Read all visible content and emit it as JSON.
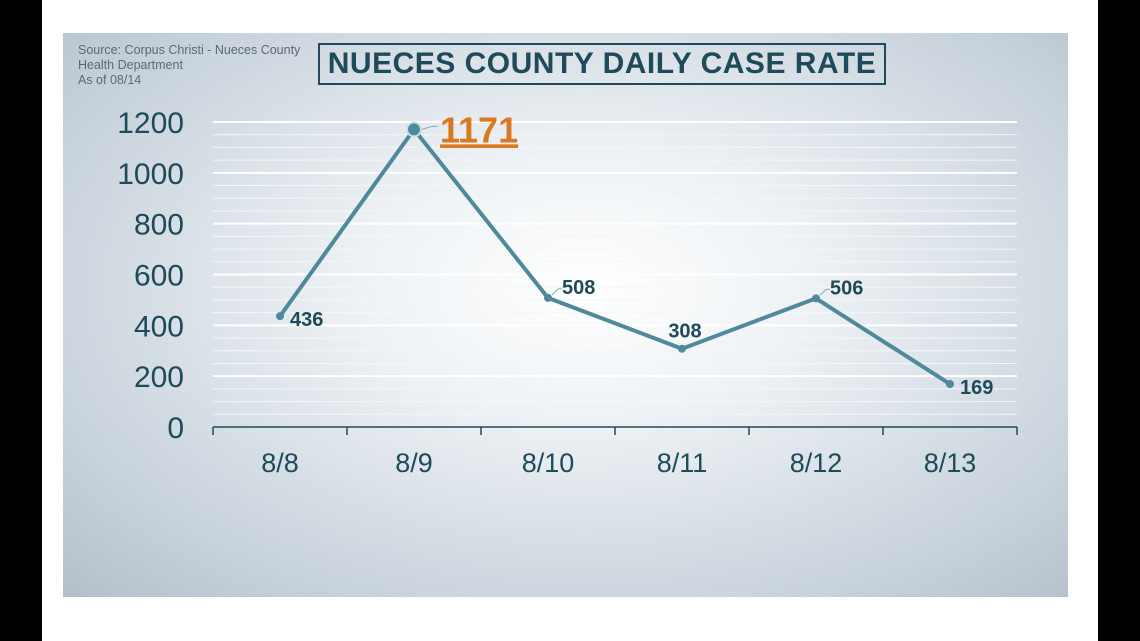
{
  "source": {
    "lines": [
      "Source: Corpus Christi - Nueces County",
      "Health Department",
      "As of 08/14"
    ]
  },
  "colors": {
    "line": "#4e8a9b",
    "text": "#1f4a59",
    "highlight": "#d9791f",
    "grid": "#f4f6f8"
  },
  "chart_data": {
    "type": "line",
    "title": "NUECES COUNTY DAILY CASE RATE",
    "categories": [
      "8/8",
      "8/9",
      "8/10",
      "8/11",
      "8/12",
      "8/13"
    ],
    "values": [
      436,
      1171,
      508,
      308,
      506,
      169
    ],
    "data_labels": [
      "436",
      "1171",
      "508",
      "308",
      "506",
      "169"
    ],
    "highlight_index": 1,
    "yticks": [
      "0",
      "200",
      "400",
      "600",
      "800",
      "1000",
      "1200"
    ],
    "ylim": [
      0,
      1200
    ],
    "grid": true,
    "legend": "none"
  }
}
